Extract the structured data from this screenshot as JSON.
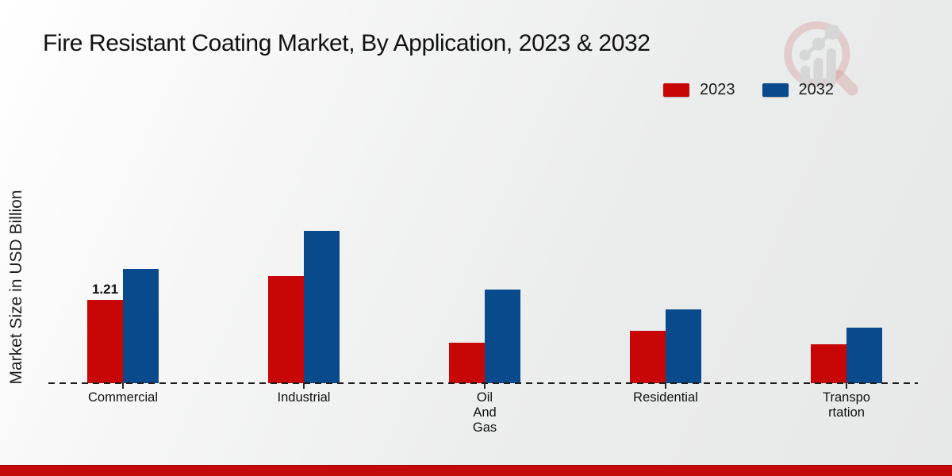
{
  "title": "Fire Resistant Coating Market, By Application, 2023 & 2032",
  "ylabel": "Market Size in USD Billion",
  "legend": [
    {
      "label": "2023",
      "color": "#c80606"
    },
    {
      "label": "2032",
      "color": "#084a8b"
    }
  ],
  "colors": {
    "bar_2023": "#c80606",
    "bar_2032": "#084a8b",
    "footer_band": "#c20a0a",
    "axis_dash": "#1c1c1c",
    "background": "#ececec"
  },
  "chart_data": {
    "type": "bar",
    "title": "Fire Resistant Coating Market, By Application, 2023 & 2032",
    "xlabel": "",
    "ylabel": "Market Size in USD Billion",
    "categories": [
      "Commercial",
      "Industrial",
      "Oil And Gas",
      "Residential",
      "Transportation"
    ],
    "category_display_lines": [
      [
        "Commercial"
      ],
      [
        "Industrial"
      ],
      [
        "Oil",
        "And",
        "Gas"
      ],
      [
        "Residential"
      ],
      [
        "Transpo",
        "rtation"
      ]
    ],
    "series": [
      {
        "name": "2023",
        "color": "#c80606",
        "values": [
          1.21,
          1.55,
          0.59,
          0.76,
          0.57
        ]
      },
      {
        "name": "2032",
        "color": "#084a8b",
        "values": [
          1.66,
          2.21,
          1.36,
          1.07,
          0.81
        ]
      }
    ],
    "data_labels": [
      {
        "series": "2023",
        "category": "Commercial",
        "text": "1.21"
      }
    ],
    "ylim": [
      0,
      2.5
    ],
    "grid": false,
    "axis_style": "dashed-baseline-only",
    "legend_position": "top-right"
  }
}
